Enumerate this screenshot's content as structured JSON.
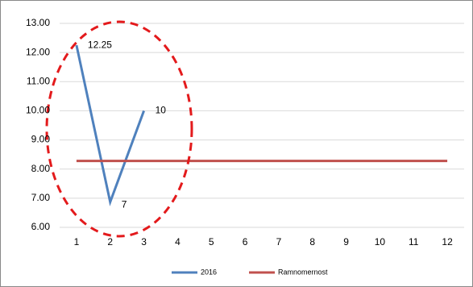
{
  "chart_data": {
    "type": "line",
    "categories": [
      "1",
      "2",
      "3",
      "4",
      "5",
      "6",
      "7",
      "8",
      "9",
      "10",
      "11",
      "12"
    ],
    "series": [
      {
        "name": "2016",
        "color": "#4f81bd",
        "values": [
          12.25,
          6.87,
          10,
          null,
          null,
          null,
          null,
          null,
          null,
          null,
          null,
          null
        ],
        "value_labels": [
          "12.25",
          "7",
          "10",
          null,
          null,
          null,
          null,
          null,
          null,
          null,
          null,
          null
        ]
      },
      {
        "name": "Ramnomernost",
        "color": "#c0504d",
        "values": [
          8.28,
          8.28,
          8.28,
          8.28,
          8.28,
          8.28,
          8.28,
          8.28,
          8.28,
          8.28,
          8.28,
          8.28
        ]
      }
    ],
    "ylim": [
      6,
      13
    ],
    "yticks": [
      {
        "value": 6,
        "label": "6.00"
      },
      {
        "value": 7,
        "label": "7.00"
      },
      {
        "value": 8,
        "label": "8.00"
      },
      {
        "value": 9,
        "label": "9.00"
      },
      {
        "value": 10,
        "label": "10.00"
      },
      {
        "value": 11,
        "label": "11.00"
      },
      {
        "value": 12,
        "label": "12.00"
      },
      {
        "value": 13,
        "label": "13.00"
      }
    ],
    "grid": true,
    "legend": "bottom"
  }
}
